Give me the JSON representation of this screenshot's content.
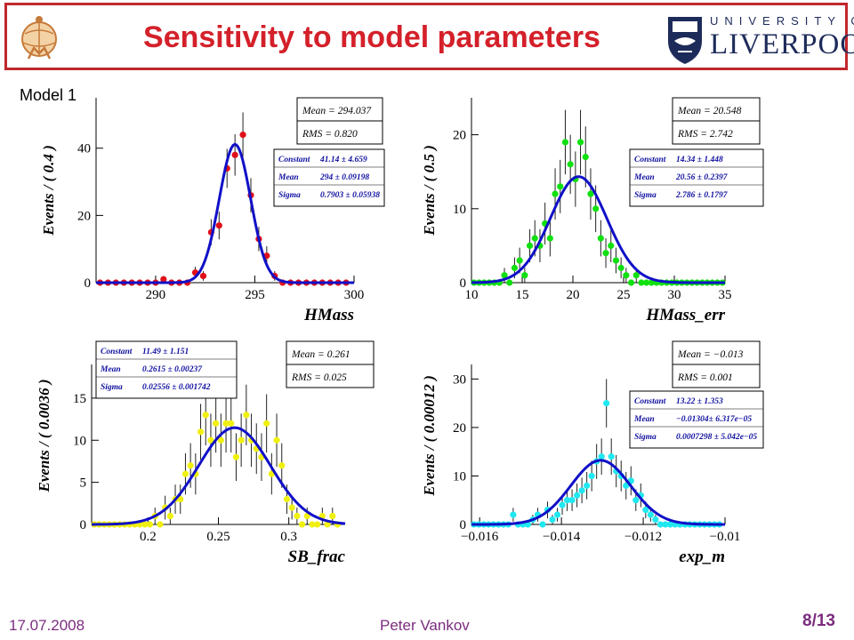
{
  "slide": {
    "title": "Sensitivity to  model parameters",
    "model_label": "Model 1",
    "footer_date": "17.07.2008",
    "footer_author": "Peter Vankov",
    "page_number": "8/13",
    "logo_atlas_text": "ATLAS",
    "logo_university_line": "UNIVERSITY OF",
    "logo_liverpool_line": "LIVERPOOL",
    "colors": {
      "title": "#d4202a",
      "border": "#c0282d",
      "footer": "#7b2c7f",
      "fit": "#1010c8"
    }
  },
  "chart_data": [
    {
      "type": "scatter",
      "title": "",
      "xlabel": "HMass",
      "ylabel": "Events / ( 0.4 )",
      "xlim": [
        287,
        300
      ],
      "ylim": [
        0,
        55
      ],
      "xticks": [
        290,
        295,
        300
      ],
      "yticks": [
        0,
        20,
        40
      ],
      "marker_color": "#e0101a",
      "series": [
        {
          "x": [
            287.2,
            287.6,
            288.0,
            288.4,
            288.8,
            289.2,
            289.6,
            290.0,
            290.4,
            290.8,
            291.2,
            291.6,
            292.0,
            292.4,
            292.8,
            293.2,
            293.6,
            294.0,
            294.4,
            294.8,
            295.2,
            295.6,
            296.0,
            296.4,
            296.8,
            297.2,
            297.6,
            298.0,
            298.4,
            298.8,
            299.2,
            299.6
          ],
          "y": [
            0,
            0,
            0,
            0,
            0,
            0,
            0,
            0,
            1,
            0,
            0,
            0,
            3,
            2,
            15,
            17,
            34,
            38,
            44,
            26,
            13,
            8,
            2,
            0,
            0,
            0,
            0,
            0,
            0,
            0,
            0,
            0
          ]
        }
      ],
      "fit": {
        "constant": 41.14,
        "mean": 294,
        "sigma": 0.7903
      },
      "stats_box": [
        "Mean = 294.037",
        "RMS = 0.820"
      ],
      "fit_box": [
        {
          "label": "Constant",
          "value": "41.14 ± 4.659"
        },
        {
          "label": "Mean",
          "value": "294 ± 0.09198"
        },
        {
          "label": "Sigma",
          "value": "0.7903 ± 0.05938"
        }
      ]
    },
    {
      "type": "scatter",
      "title": "",
      "xlabel": "HMass_err",
      "ylabel": "Events / ( 0.5 )",
      "xlim": [
        10,
        35
      ],
      "ylim": [
        0,
        25
      ],
      "xticks": [
        10,
        15,
        20,
        25,
        30,
        35
      ],
      "yticks": [
        0,
        10,
        20
      ],
      "marker_color": "#10e010",
      "series": [
        {
          "x": [
            10.25,
            10.75,
            11.25,
            11.75,
            12.25,
            12.75,
            13.25,
            13.75,
            14.25,
            14.75,
            15.25,
            15.75,
            16.25,
            16.75,
            17.25,
            17.75,
            18.25,
            18.75,
            19.25,
            19.75,
            20.25,
            20.75,
            21.25,
            21.75,
            22.25,
            22.75,
            23.25,
            23.75,
            24.25,
            24.75,
            25.25,
            25.75,
            26.25,
            26.75,
            27.25,
            27.75,
            28.25,
            28.75,
            29.25,
            29.75,
            30.25,
            30.75,
            31.25,
            31.75,
            32.25,
            32.75,
            33.25,
            33.75,
            34.25,
            34.75
          ],
          "y": [
            0,
            0,
            0,
            0,
            0,
            0,
            1,
            0,
            2,
            3,
            1,
            5,
            6,
            5,
            8,
            6,
            12,
            13,
            19,
            16,
            14,
            19,
            17,
            12,
            10,
            6,
            4,
            5,
            3,
            2,
            1,
            0,
            1,
            0,
            0,
            0,
            0,
            0,
            0,
            0,
            0,
            0,
            0,
            0,
            0,
            0,
            0,
            0,
            0,
            0
          ]
        }
      ],
      "fit": {
        "constant": 14.34,
        "mean": 20.56,
        "sigma": 2.786
      },
      "stats_box": [
        "Mean = 20.548",
        "RMS = 2.742"
      ],
      "fit_box": [
        {
          "label": "Constant",
          "value": "14.34 ± 1.448"
        },
        {
          "label": "Mean",
          "value": "20.56 ± 0.2397"
        },
        {
          "label": "Sigma",
          "value": "2.786 ± 0.1797"
        }
      ]
    },
    {
      "type": "scatter",
      "title": "",
      "xlabel": "SB_frac",
      "ylabel": "Events / ( 0.0036 )",
      "xlim": [
        0.16,
        0.34
      ],
      "ylim": [
        0,
        19
      ],
      "xticks": [
        0.2,
        0.25,
        0.3
      ],
      "xticklabels": [
        "0.2",
        "0.25",
        "0.3"
      ],
      "yticks": [
        0,
        5,
        10,
        15
      ],
      "marker_color": "#f0f010",
      "series": [
        {
          "x": [
            0.1618,
            0.1654,
            0.169,
            0.1726,
            0.1762,
            0.1798,
            0.1834,
            0.187,
            0.1906,
            0.1942,
            0.1978,
            0.2014,
            0.205,
            0.2086,
            0.2122,
            0.2158,
            0.2194,
            0.223,
            0.2266,
            0.2302,
            0.2338,
            0.2374,
            0.241,
            0.2446,
            0.2482,
            0.2518,
            0.2554,
            0.259,
            0.2626,
            0.2662,
            0.2698,
            0.2734,
            0.277,
            0.2806,
            0.2842,
            0.2878,
            0.2914,
            0.295,
            0.2986,
            0.3022,
            0.3058,
            0.3094,
            0.313,
            0.3166,
            0.3202,
            0.3238,
            0.3274,
            0.331,
            0.3346
          ],
          "y": [
            0,
            0,
            0,
            0,
            0,
            0,
            0,
            0,
            0,
            0,
            0,
            0,
            1,
            0,
            2,
            1,
            3,
            3,
            6,
            7,
            6,
            11,
            13,
            10,
            12,
            10,
            12,
            12,
            8,
            10,
            13,
            10,
            9,
            8,
            12,
            6,
            10,
            7,
            3,
            2,
            1,
            0,
            1,
            0,
            0,
            1,
            0,
            1,
            0
          ]
        }
      ],
      "fit": {
        "constant": 11.49,
        "mean": 0.2615,
        "sigma": 0.02556
      },
      "stats_box": [
        "Mean = 0.261",
        "RMS = 0.025"
      ],
      "fit_box": [
        {
          "label": "Constant",
          "value": "11.49 ± 1.151"
        },
        {
          "label": "Mean",
          "value": "0.2615 ± 0.00237"
        },
        {
          "label": "Sigma",
          "value": "0.02556 ± 0.001742"
        }
      ]
    },
    {
      "type": "scatter",
      "title": "",
      "xlabel": "exp_m",
      "ylabel": "Events / ( 0.00012 )",
      "xlim": [
        -0.0162,
        -0.01
      ],
      "ylim": [
        0,
        33
      ],
      "xticks": [
        -0.016,
        -0.014,
        -0.012,
        -0.01
      ],
      "xticklabels": [
        "−0.016",
        "−0.014",
        "−0.012",
        "−0.01"
      ],
      "yticks": [
        0,
        10,
        20,
        30
      ],
      "marker_color": "#20e8f0",
      "series": [
        {
          "x": [
            -0.01614,
            -0.01602,
            -0.0159,
            -0.01578,
            -0.01566,
            -0.01554,
            -0.01542,
            -0.0153,
            -0.01518,
            -0.01506,
            -0.01494,
            -0.01482,
            -0.0147,
            -0.01458,
            -0.01446,
            -0.01434,
            -0.01422,
            -0.0141,
            -0.01398,
            -0.01386,
            -0.01374,
            -0.01362,
            -0.0135,
            -0.01338,
            -0.01326,
            -0.01314,
            -0.01302,
            -0.0129,
            -0.01278,
            -0.01266,
            -0.01254,
            -0.01242,
            -0.0123,
            -0.01218,
            -0.01206,
            -0.01194,
            -0.01182,
            -0.0117,
            -0.01158,
            -0.01146,
            -0.01134,
            -0.01122,
            -0.0111,
            -0.01098,
            -0.01086,
            -0.01074,
            -0.01062,
            -0.0105,
            -0.01038,
            -0.01026,
            -0.01014
          ],
          "y": [
            0,
            0,
            0,
            0,
            0,
            0,
            0,
            0,
            2,
            0,
            0,
            0,
            1,
            2,
            0,
            3,
            1,
            2,
            4,
            5,
            5,
            6,
            7,
            8,
            10,
            13,
            14,
            25,
            14,
            11,
            10,
            8,
            9,
            5,
            6,
            3,
            2,
            1,
            0,
            0,
            0,
            0,
            0,
            0,
            0,
            0,
            0,
            0,
            0,
            0,
            0
          ]
        }
      ],
      "fit": {
        "constant": 13.22,
        "mean": -0.01304,
        "sigma": 0.0007298
      },
      "stats_box": [
        "Mean = −0.013",
        "RMS = 0.001"
      ],
      "fit_box": [
        {
          "label": "Constant",
          "value": "13.22 ± 1.353"
        },
        {
          "label": "Mean",
          "value": "−0.01304± 6.317e−05"
        },
        {
          "label": "Sigma",
          "value": "0.0007298 ± 5.042e−05"
        }
      ]
    }
  ]
}
